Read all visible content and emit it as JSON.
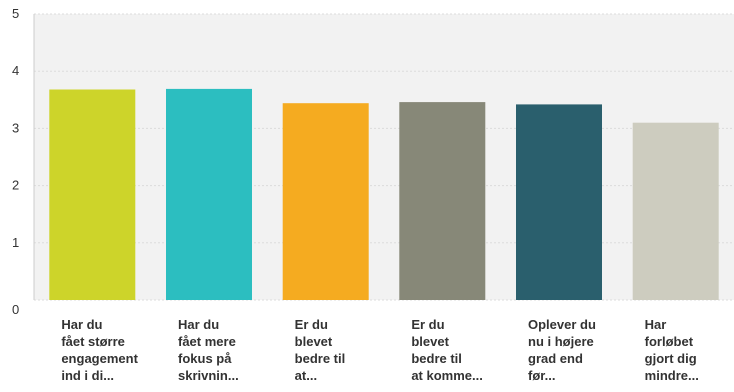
{
  "chart_data": {
    "type": "bar",
    "title": "",
    "xlabel": "",
    "ylabel": "",
    "ylim": [
      0,
      5
    ],
    "yticks": [
      0,
      1,
      2,
      3,
      4,
      5
    ],
    "grid": true,
    "legend": "none",
    "categories": [
      "Har du\nfået større\nengagement\nind i di...",
      "Har du\nfået mere\nfokus på\nskrivnin...",
      "Er du\nblevet\nbedre til\nat...",
      "Er du\nblevet\nbedre til\nat komme...",
      "Oplever du\nnu i højere\ngrad end\nfør...",
      "Har\nforløbet\ngjort dig\nmindre..."
    ],
    "values": [
      3.68,
      3.69,
      3.44,
      3.46,
      3.42,
      3.1
    ],
    "colors": [
      "#cdd42a",
      "#2cbec0",
      "#f5ab20",
      "#878878",
      "#2a5f6d",
      "#cdccbf"
    ],
    "grid_color": "#dcdcdc",
    "plot_background": "#f2f2f2"
  }
}
